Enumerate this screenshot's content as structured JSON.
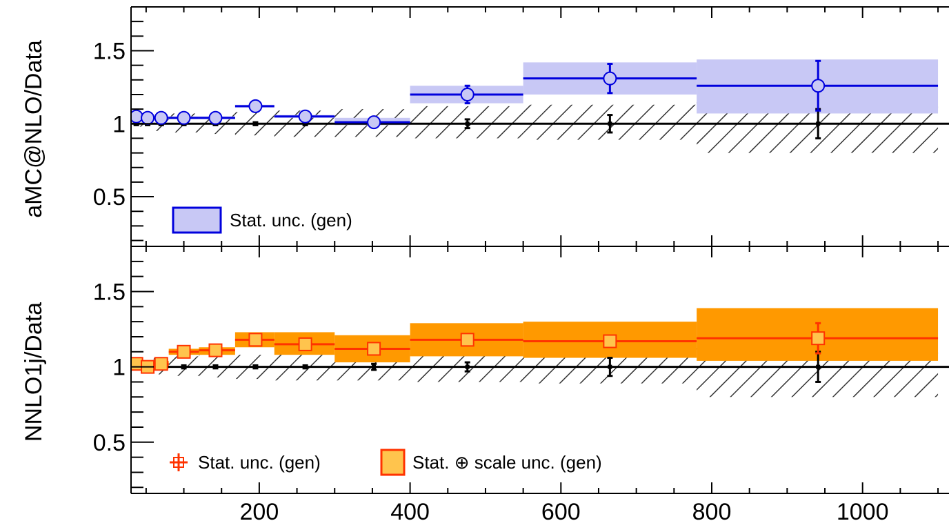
{
  "chart_data": [
    {
      "type": "line",
      "panel": "top",
      "ylabel": "aMC@NLO/Data",
      "ylim": [
        0.16,
        1.8
      ],
      "y_ticks": [
        0.5,
        1,
        1.5
      ],
      "y_tick_labels": [
        "0.5",
        "1",
        "1.5"
      ],
      "x_ticks": [
        200,
        400,
        600,
        800,
        1000
      ],
      "color": "#0000dd",
      "band_color": "#c8c8f5",
      "legend_position": "bottom-left",
      "legend": [
        "Stat. unc. (gen)"
      ],
      "series": [
        {
          "name": "aMC@NLO/Data",
          "points": [
            {
              "x": 37,
              "xlo": 30,
              "xhi": 45,
              "y": 1.05,
              "err": 0.01,
              "band": [
                1.04,
                1.06
              ]
            },
            {
              "x": 52,
              "xlo": 45,
              "xhi": 60,
              "y": 1.04,
              "err": 0.01,
              "band": [
                1.03,
                1.05
              ]
            },
            {
              "x": 70,
              "xlo": 60,
              "xhi": 80,
              "y": 1.04,
              "err": 0.01,
              "band": [
                1.03,
                1.05
              ]
            },
            {
              "x": 100,
              "xlo": 80,
              "xhi": 120,
              "y": 1.04,
              "err": 0.01,
              "band": [
                1.03,
                1.05
              ]
            },
            {
              "x": 142,
              "xlo": 120,
              "xhi": 168,
              "y": 1.04,
              "err": 0.01,
              "band": [
                1.03,
                1.05
              ]
            },
            {
              "x": 195,
              "xlo": 168,
              "xhi": 220,
              "y": 1.12,
              "err": 0.01,
              "band": [
                1.11,
                1.13
              ]
            },
            {
              "x": 261,
              "xlo": 220,
              "xhi": 300,
              "y": 1.05,
              "err": 0.01,
              "band": [
                1.04,
                1.06
              ]
            },
            {
              "x": 352,
              "xlo": 300,
              "xhi": 400,
              "y": 1.01,
              "err": 0.02,
              "band": [
                0.99,
                1.04
              ]
            },
            {
              "x": 476,
              "xlo": 400,
              "xhi": 550,
              "y": 1.2,
              "err": 0.06,
              "band": [
                1.14,
                1.26
              ]
            },
            {
              "x": 665,
              "xlo": 550,
              "xhi": 780,
              "y": 1.31,
              "err": 0.1,
              "band": [
                1.2,
                1.42
              ]
            },
            {
              "x": 941,
              "xlo": 780,
              "xhi": 1100,
              "y": 1.26,
              "err": 0.17,
              "band": [
                1.07,
                1.44
              ]
            }
          ]
        }
      ],
      "data_reference": [
        {
          "x": 37,
          "err": 0.01
        },
        {
          "x": 52,
          "err": 0.01
        },
        {
          "x": 70,
          "err": 0.01
        },
        {
          "x": 100,
          "err": 0.01
        },
        {
          "x": 142,
          "err": 0.01
        },
        {
          "x": 195,
          "err": 0.01
        },
        {
          "x": 261,
          "err": 0.01
        },
        {
          "x": 352,
          "err": 0.02
        },
        {
          "x": 476,
          "err": 0.03
        },
        {
          "x": 665,
          "err": 0.06
        },
        {
          "x": 941,
          "err": 0.1
        }
      ],
      "data_unc_band": [
        {
          "xlo": 30,
          "xhi": 45,
          "lo": 0.98,
          "hi": 1.02
        },
        {
          "xlo": 45,
          "xhi": 60,
          "lo": 0.97,
          "hi": 1.04
        },
        {
          "xlo": 60,
          "xhi": 80,
          "lo": 0.95,
          "hi": 1.06
        },
        {
          "xlo": 80,
          "xhi": 120,
          "lo": 0.94,
          "hi": 1.07
        },
        {
          "xlo": 120,
          "xhi": 168,
          "lo": 0.93,
          "hi": 1.08
        },
        {
          "xlo": 168,
          "xhi": 220,
          "lo": 0.92,
          "hi": 1.08
        },
        {
          "xlo": 220,
          "xhi": 300,
          "lo": 0.91,
          "hi": 1.09
        },
        {
          "xlo": 300,
          "xhi": 400,
          "lo": 0.91,
          "hi": 1.1
        },
        {
          "xlo": 400,
          "xhi": 550,
          "lo": 0.9,
          "hi": 1.12
        },
        {
          "xlo": 550,
          "xhi": 780,
          "lo": 0.89,
          "hi": 1.13
        },
        {
          "xlo": 780,
          "xhi": 1100,
          "lo": 0.8,
          "hi": 1.22
        }
      ]
    },
    {
      "type": "line",
      "panel": "bottom",
      "ylabel": "NNLO1j/Data",
      "ylim": [
        0.16,
        1.8
      ],
      "y_ticks": [
        0.5,
        1,
        1.5
      ],
      "y_tick_labels": [
        "0.5",
        "1",
        "1.5"
      ],
      "x_ticks": [
        200,
        400,
        600,
        800,
        1000
      ],
      "x_tick_labels": [
        "200",
        "400",
        "600",
        "800",
        "1000"
      ],
      "color": "#ff3300",
      "band_color": "#ff9900",
      "legend_position": "bottom-left",
      "legend": [
        "Stat. unc. (gen)",
        "Stat. ⊕ scale  unc. (gen)"
      ],
      "series": [
        {
          "name": "NNLO1j/Data",
          "points": [
            {
              "x": 37,
              "xlo": 30,
              "xhi": 45,
              "y": 1.02,
              "err": 0.01,
              "band": [
                0.98,
                1.04
              ]
            },
            {
              "x": 52,
              "xlo": 45,
              "xhi": 60,
              "y": 1.0,
              "err": 0.01,
              "band": [
                0.97,
                1.03
              ]
            },
            {
              "x": 70,
              "xlo": 60,
              "xhi": 80,
              "y": 1.02,
              "err": 0.01,
              "band": [
                0.99,
                1.04
              ]
            },
            {
              "x": 100,
              "xlo": 80,
              "xhi": 120,
              "y": 1.1,
              "err": 0.01,
              "band": [
                1.08,
                1.12
              ]
            },
            {
              "x": 142,
              "xlo": 120,
              "xhi": 168,
              "y": 1.11,
              "err": 0.01,
              "band": [
                1.08,
                1.13
              ]
            },
            {
              "x": 195,
              "xlo": 168,
              "xhi": 220,
              "y": 1.18,
              "err": 0.01,
              "band": [
                1.13,
                1.23
              ]
            },
            {
              "x": 261,
              "xlo": 220,
              "xhi": 300,
              "y": 1.15,
              "err": 0.01,
              "band": [
                1.08,
                1.23
              ]
            },
            {
              "x": 352,
              "xlo": 300,
              "xhi": 400,
              "y": 1.12,
              "err": 0.01,
              "band": [
                1.03,
                1.21
              ]
            },
            {
              "x": 476,
              "xlo": 400,
              "xhi": 550,
              "y": 1.18,
              "err": 0.02,
              "band": [
                1.07,
                1.29
              ]
            },
            {
              "x": 665,
              "xlo": 550,
              "xhi": 780,
              "y": 1.17,
              "err": 0.03,
              "band": [
                1.06,
                1.3
              ]
            },
            {
              "x": 941,
              "xlo": 780,
              "xhi": 1100,
              "y": 1.19,
              "err": 0.1,
              "band": [
                1.04,
                1.39
              ]
            }
          ]
        }
      ],
      "data_reference": [
        {
          "x": 37,
          "err": 0.01
        },
        {
          "x": 52,
          "err": 0.01
        },
        {
          "x": 70,
          "err": 0.01
        },
        {
          "x": 100,
          "err": 0.01
        },
        {
          "x": 142,
          "err": 0.01
        },
        {
          "x": 195,
          "err": 0.01
        },
        {
          "x": 261,
          "err": 0.01
        },
        {
          "x": 352,
          "err": 0.02
        },
        {
          "x": 476,
          "err": 0.03
        },
        {
          "x": 665,
          "err": 0.06
        },
        {
          "x": 941,
          "err": 0.1
        }
      ],
      "data_unc_band": [
        {
          "xlo": 30,
          "xhi": 45,
          "lo": 0.98,
          "hi": 1.02
        },
        {
          "xlo": 45,
          "xhi": 60,
          "lo": 0.97,
          "hi": 1.04
        },
        {
          "xlo": 60,
          "xhi": 80,
          "lo": 0.95,
          "hi": 1.06
        },
        {
          "xlo": 80,
          "xhi": 120,
          "lo": 0.94,
          "hi": 1.07
        },
        {
          "xlo": 120,
          "xhi": 168,
          "lo": 0.93,
          "hi": 1.08
        },
        {
          "xlo": 168,
          "xhi": 220,
          "lo": 0.92,
          "hi": 1.08
        },
        {
          "xlo": 220,
          "xhi": 300,
          "lo": 0.91,
          "hi": 1.09
        },
        {
          "xlo": 300,
          "xhi": 400,
          "lo": 0.91,
          "hi": 1.1
        },
        {
          "xlo": 400,
          "xhi": 550,
          "lo": 0.9,
          "hi": 1.12
        },
        {
          "xlo": 550,
          "xhi": 780,
          "lo": 0.89,
          "hi": 1.13
        },
        {
          "xlo": 780,
          "xhi": 1100,
          "lo": 0.8,
          "hi": 1.22
        }
      ]
    }
  ]
}
